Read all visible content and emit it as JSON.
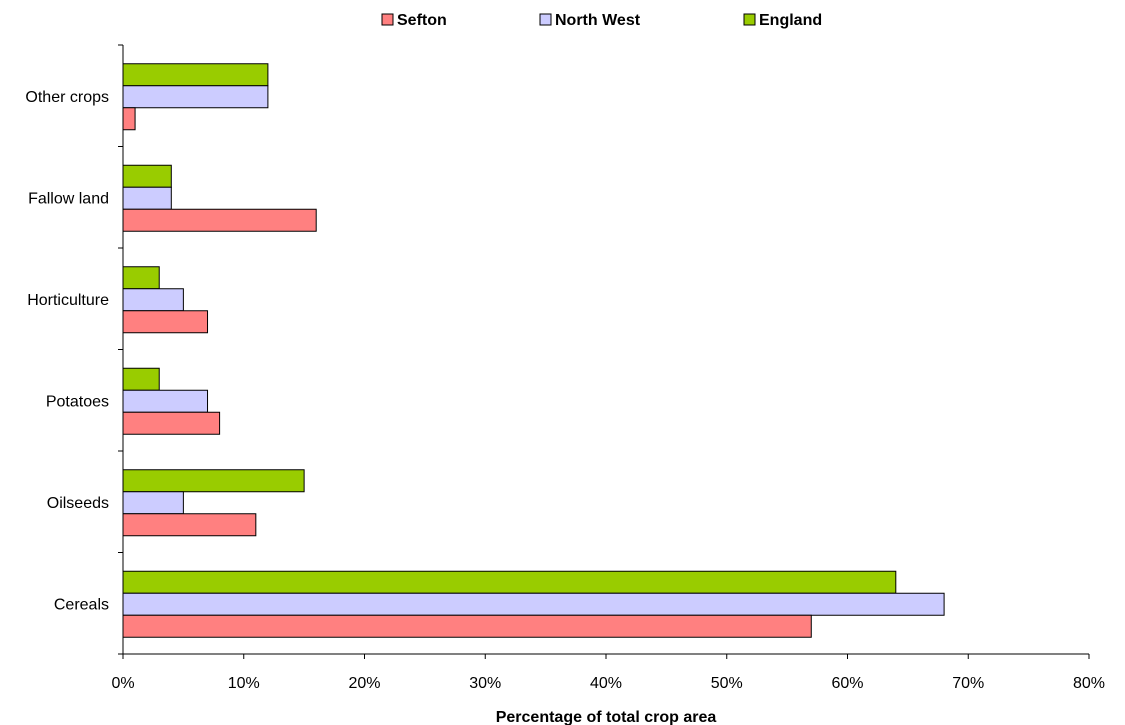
{
  "chart_data": {
    "type": "bar",
    "orientation": "horizontal",
    "categories": [
      "Cereals",
      "Oilseeds",
      "Potatoes",
      "Horticulture",
      "Fallow land",
      "Other crops"
    ],
    "series": [
      {
        "name": "Sefton",
        "color": "#ff8080",
        "values": [
          57,
          11,
          8,
          7,
          16,
          1
        ]
      },
      {
        "name": "North West",
        "color": "#ccccff",
        "values": [
          68,
          5,
          7,
          5,
          4,
          12
        ]
      },
      {
        "name": "England",
        "color": "#99cc00",
        "values": [
          64,
          15,
          3,
          3,
          4,
          12
        ]
      }
    ],
    "xlabel": "Percentage of total crop area",
    "ylabel": "",
    "xlim": [
      0,
      80
    ],
    "xticks": [
      "0%",
      "10%",
      "20%",
      "30%",
      "40%",
      "50%",
      "60%",
      "70%",
      "80%"
    ],
    "grid": false,
    "legend_position": "top"
  }
}
